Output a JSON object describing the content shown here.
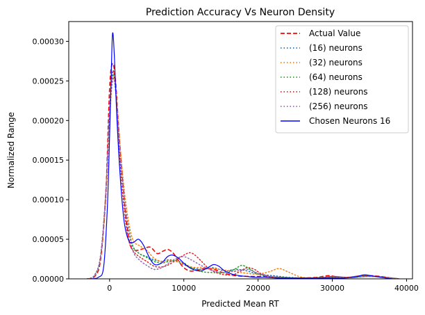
{
  "chart_data": {
    "type": "line",
    "title": "Prediction Accuracy Vs Neuron Density",
    "xlabel": "Predicted Mean RT",
    "ylabel": "Normalized Range",
    "xlim": [
      -5500,
      40800
    ],
    "ylim": [
      0,
      0.000325
    ],
    "xticks": [
      0,
      10000,
      20000,
      30000,
      40000
    ],
    "xtick_labels": [
      "0",
      "10000",
      "20000",
      "30000",
      "40000"
    ],
    "yticks": [
      0,
      5e-05,
      0.0001,
      0.00015,
      0.0002,
      0.00025,
      0.0003
    ],
    "ytick_labels": [
      "0.00000",
      "0.00005",
      "0.00010",
      "0.00015",
      "0.00020",
      "0.00025",
      "0.00030"
    ],
    "grid": false,
    "legend_position": "top-right",
    "series": [
      {
        "name": "Actual Value",
        "color": "#ff0000",
        "dash": "dashed",
        "width": 1.6,
        "points": [
          [
            -3000,
            0
          ],
          [
            -2000,
            3e-06
          ],
          [
            -1200,
            2.5e-05
          ],
          [
            -500,
            0.00011
          ],
          [
            0,
            0.00024
          ],
          [
            400,
            0.000272
          ],
          [
            800,
            0.00025
          ],
          [
            1300,
            0.00018
          ],
          [
            1800,
            0.00012
          ],
          [
            2300,
            7e-05
          ],
          [
            2800,
            4.2e-05
          ],
          [
            3500,
            3.6e-05
          ],
          [
            4500,
            3.8e-05
          ],
          [
            5500,
            4e-05
          ],
          [
            6400,
            3.2e-05
          ],
          [
            7200,
            3.5e-05
          ],
          [
            7900,
            3.7e-05
          ],
          [
            8700,
            3.1e-05
          ],
          [
            9800,
            1.6e-05
          ],
          [
            10800,
            1e-05
          ],
          [
            11800,
            1.1e-05
          ],
          [
            12800,
            1.3e-05
          ],
          [
            14000,
            1.2e-05
          ],
          [
            15500,
            7e-06
          ],
          [
            17000,
            4e-06
          ],
          [
            19000,
            3e-06
          ],
          [
            21000,
            3e-06
          ],
          [
            22500,
            2e-06
          ],
          [
            24000,
            1e-06
          ],
          [
            26000,
            1e-06
          ],
          [
            28000,
            2e-06
          ],
          [
            29500,
            4e-06
          ],
          [
            31000,
            2e-06
          ],
          [
            33000,
            2e-06
          ],
          [
            35000,
            4e-06
          ],
          [
            36500,
            3e-06
          ],
          [
            38000,
            1e-06
          ],
          [
            39000,
            0
          ]
        ]
      },
      {
        "name": "(16) neurons",
        "color": "#1f77b4",
        "dash": "dotted",
        "width": 1.5,
        "points": [
          [
            -3000,
            0
          ],
          [
            -2000,
            5e-06
          ],
          [
            -1200,
            3e-05
          ],
          [
            -500,
            0.00011
          ],
          [
            0,
            0.00021
          ],
          [
            400,
            0.00026
          ],
          [
            800,
            0.00024
          ],
          [
            1400,
            0.00016
          ],
          [
            2000,
            0.0001
          ],
          [
            2600,
            6e-05
          ],
          [
            3200,
            4e-05
          ],
          [
            4000,
            3.2e-05
          ],
          [
            5000,
            2.8e-05
          ],
          [
            6000,
            2.4e-05
          ],
          [
            7000,
            2.2e-05
          ],
          [
            8000,
            2.4e-05
          ],
          [
            9000,
            2.2e-05
          ],
          [
            10000,
            1.8e-05
          ],
          [
            11000,
            1.4e-05
          ],
          [
            12500,
            1.2e-05
          ],
          [
            14000,
            1.4e-05
          ],
          [
            15500,
            1e-05
          ],
          [
            17000,
            1.2e-05
          ],
          [
            18500,
            1e-05
          ],
          [
            20000,
            6e-06
          ],
          [
            22000,
            4e-06
          ],
          [
            24000,
            2e-06
          ],
          [
            26000,
            1e-06
          ],
          [
            28000,
            1e-06
          ],
          [
            30000,
            3e-06
          ],
          [
            32000,
            2e-06
          ],
          [
            34000,
            4e-06
          ],
          [
            36000,
            3e-06
          ],
          [
            38000,
            1e-06
          ],
          [
            39000,
            0
          ]
        ]
      },
      {
        "name": "(32) neurons",
        "color": "#ff7f0e",
        "dash": "dotted",
        "width": 1.5,
        "points": [
          [
            -3000,
            0
          ],
          [
            -2000,
            4e-06
          ],
          [
            -1200,
            2.8e-05
          ],
          [
            -500,
            0.0001
          ],
          [
            0,
            0.0002
          ],
          [
            400,
            0.00025
          ],
          [
            800,
            0.000245
          ],
          [
            1400,
            0.00017
          ],
          [
            2000,
            0.00011
          ],
          [
            2600,
            7e-05
          ],
          [
            3200,
            4.8e-05
          ],
          [
            4000,
            4.2e-05
          ],
          [
            5000,
            3.6e-05
          ],
          [
            6000,
            2.6e-05
          ],
          [
            7000,
            2.2e-05
          ],
          [
            8000,
            2.3e-05
          ],
          [
            9000,
            2.2e-05
          ],
          [
            10000,
            1.9e-05
          ],
          [
            11000,
            1.5e-05
          ],
          [
            12500,
            1.4e-05
          ],
          [
            14000,
            1.3e-05
          ],
          [
            15500,
            1.1e-05
          ],
          [
            17000,
            9e-06
          ],
          [
            18500,
            7e-06
          ],
          [
            20000,
            6e-06
          ],
          [
            21500,
            9e-06
          ],
          [
            22800,
            1.3e-05
          ],
          [
            24000,
            9e-06
          ],
          [
            25500,
            3e-06
          ],
          [
            27000,
            1e-06
          ],
          [
            29000,
            2e-06
          ],
          [
            31000,
            2e-06
          ],
          [
            33000,
            2e-06
          ],
          [
            35000,
            3e-06
          ],
          [
            37000,
            2e-06
          ],
          [
            39000,
            0
          ]
        ]
      },
      {
        "name": "(64) neurons",
        "color": "#2ca02c",
        "dash": "dotted",
        "width": 1.5,
        "points": [
          [
            -3000,
            0
          ],
          [
            -2000,
            4e-06
          ],
          [
            -1200,
            3e-05
          ],
          [
            -500,
            0.00011
          ],
          [
            0,
            0.00021
          ],
          [
            400,
            0.000255
          ],
          [
            800,
            0.00024
          ],
          [
            1400,
            0.00016
          ],
          [
            2000,
            0.0001
          ],
          [
            2600,
            6.2e-05
          ],
          [
            3200,
            4e-05
          ],
          [
            4000,
            3.2e-05
          ],
          [
            5000,
            2.7e-05
          ],
          [
            6000,
            2.2e-05
          ],
          [
            7000,
            2e-05
          ],
          [
            8000,
            2.2e-05
          ],
          [
            9000,
            2.3e-05
          ],
          [
            10000,
            2e-05
          ],
          [
            11000,
            1.4e-05
          ],
          [
            12500,
            9e-06
          ],
          [
            14000,
            8e-06
          ],
          [
            15500,
            8e-06
          ],
          [
            16800,
            1.2e-05
          ],
          [
            17800,
            1.7e-05
          ],
          [
            18800,
            1.3e-05
          ],
          [
            20000,
            6e-06
          ],
          [
            21500,
            3e-06
          ],
          [
            23000,
            2e-06
          ],
          [
            25000,
            1e-06
          ],
          [
            27000,
            1e-06
          ],
          [
            29000,
            2e-06
          ],
          [
            31000,
            2e-06
          ],
          [
            33000,
            2e-06
          ],
          [
            35000,
            3e-06
          ],
          [
            37000,
            2e-06
          ],
          [
            39000,
            0
          ]
        ]
      },
      {
        "name": "(128) neurons",
        "color": "#d62728",
        "dash": "dotted",
        "width": 1.5,
        "points": [
          [
            -3000,
            0
          ],
          [
            -2000,
            4e-06
          ],
          [
            -1200,
            3e-05
          ],
          [
            -500,
            0.00011
          ],
          [
            0,
            0.00021
          ],
          [
            400,
            0.000262
          ],
          [
            800,
            0.00024
          ],
          [
            1400,
            0.00015
          ],
          [
            2000,
            8.5e-05
          ],
          [
            2600,
            4.8e-05
          ],
          [
            3200,
            3.5e-05
          ],
          [
            4000,
            2.8e-05
          ],
          [
            5000,
            2.2e-05
          ],
          [
            6000,
            1.6e-05
          ],
          [
            7000,
            1.5e-05
          ],
          [
            8000,
            1.8e-05
          ],
          [
            9000,
            2.4e-05
          ],
          [
            10000,
            3e-05
          ],
          [
            10800,
            3.3e-05
          ],
          [
            11500,
            3e-05
          ],
          [
            12500,
            2.1e-05
          ],
          [
            13500,
            1.2e-05
          ],
          [
            15000,
            6e-06
          ],
          [
            16500,
            5e-06
          ],
          [
            17500,
            9e-06
          ],
          [
            18500,
            1.4e-05
          ],
          [
            19500,
            1.2e-05
          ],
          [
            20500,
            6e-06
          ],
          [
            22000,
            2e-06
          ],
          [
            24000,
            1e-06
          ],
          [
            26000,
            1e-06
          ],
          [
            28000,
            1e-06
          ],
          [
            30000,
            3e-06
          ],
          [
            32000,
            2e-06
          ],
          [
            34000,
            4e-06
          ],
          [
            36000,
            3e-06
          ],
          [
            38000,
            1e-06
          ],
          [
            39000,
            0
          ]
        ]
      },
      {
        "name": "(256) neurons",
        "color": "#9467bd",
        "dash": "dotted",
        "width": 1.5,
        "points": [
          [
            -3000,
            0
          ],
          [
            -2000,
            4e-06
          ],
          [
            -1200,
            3e-05
          ],
          [
            -500,
            0.00011
          ],
          [
            0,
            0.00021
          ],
          [
            400,
            0.00025
          ],
          [
            800,
            0.00024
          ],
          [
            1400,
            0.00016
          ],
          [
            2000,
            0.0001
          ],
          [
            2600,
            6e-05
          ],
          [
            3200,
            3.4e-05
          ],
          [
            4000,
            2.4e-05
          ],
          [
            5000,
            1.7e-05
          ],
          [
            6000,
            1.2e-05
          ],
          [
            7000,
            1.4e-05
          ],
          [
            8000,
            2e-05
          ],
          [
            9000,
            2.6e-05
          ],
          [
            10000,
            2.8e-05
          ],
          [
            11000,
            2.4e-05
          ],
          [
            12500,
            1.6e-05
          ],
          [
            14000,
            1e-05
          ],
          [
            15500,
            8e-06
          ],
          [
            17000,
            1e-05
          ],
          [
            18500,
            1.2e-05
          ],
          [
            19500,
            9e-06
          ],
          [
            21000,
            4e-06
          ],
          [
            23000,
            2e-06
          ],
          [
            25000,
            1e-06
          ],
          [
            27000,
            1e-06
          ],
          [
            29000,
            2e-06
          ],
          [
            31000,
            2e-06
          ],
          [
            33000,
            2e-06
          ],
          [
            35000,
            3e-06
          ],
          [
            37000,
            2e-06
          ],
          [
            39000,
            0
          ]
        ]
      },
      {
        "name": "Chosen Neurons 16",
        "color": "#0000ff",
        "dash": "solid",
        "width": 1.2,
        "points": [
          [
            -2500,
            0
          ],
          [
            -1500,
            2e-06
          ],
          [
            -800,
            1.5e-05
          ],
          [
            -300,
            9e-05
          ],
          [
            0,
            0.00018
          ],
          [
            200,
            0.00025
          ],
          [
            400,
            0.00031
          ],
          [
            650,
            0.00028
          ],
          [
            1000,
            0.0002
          ],
          [
            1500,
            0.00012
          ],
          [
            2000,
            7e-05
          ],
          [
            2600,
            4.8e-05
          ],
          [
            3200,
            4.6e-05
          ],
          [
            3900,
            5e-05
          ],
          [
            4600,
            4.2e-05
          ],
          [
            5400,
            2.6e-05
          ],
          [
            6100,
            1.8e-05
          ],
          [
            7000,
            2e-05
          ],
          [
            7800,
            2.8e-05
          ],
          [
            8500,
            3e-05
          ],
          [
            9300,
            2.6e-05
          ],
          [
            10200,
            1.8e-05
          ],
          [
            11200,
            1.2e-05
          ],
          [
            12300,
            1e-05
          ],
          [
            13200,
            1.4e-05
          ],
          [
            14000,
            1.8e-05
          ],
          [
            14700,
            1.6e-05
          ],
          [
            15500,
            1e-05
          ],
          [
            16500,
            6e-06
          ],
          [
            17500,
            4e-06
          ],
          [
            18500,
            3e-06
          ],
          [
            19500,
            2e-06
          ],
          [
            21000,
            2e-06
          ],
          [
            22500,
            1e-06
          ],
          [
            24000,
            1e-06
          ],
          [
            26000,
            1e-06
          ],
          [
            28000,
            1e-06
          ],
          [
            30000,
            1e-06
          ],
          [
            31500,
            1e-06
          ],
          [
            33000,
            2e-06
          ],
          [
            34200,
            5e-06
          ],
          [
            35200,
            4e-06
          ],
          [
            36500,
            2e-06
          ],
          [
            38000,
            0
          ]
        ]
      }
    ]
  }
}
